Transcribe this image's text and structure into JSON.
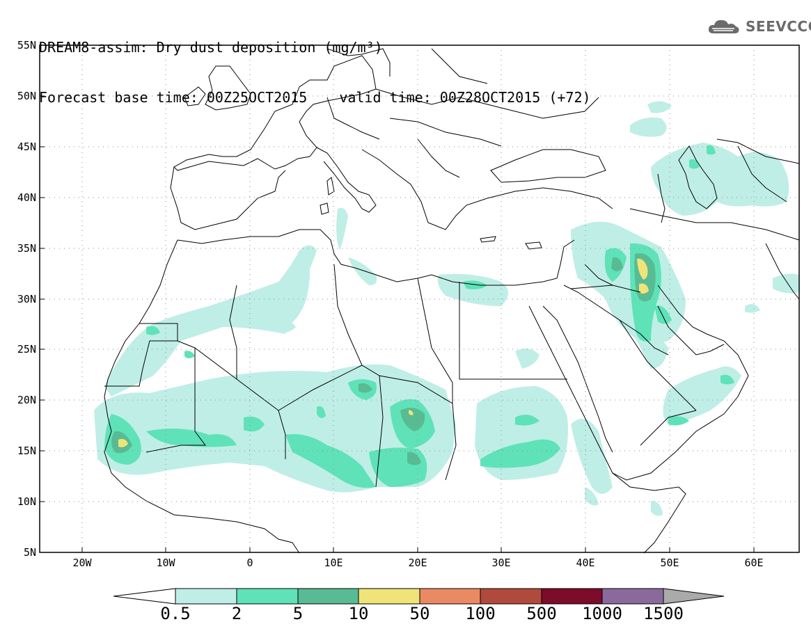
{
  "title": {
    "line1": "DREAM8-assim: Dry dust deposition (mg/m³)",
    "base_time": "Forecast base time: 00Z25OCT2015",
    "valid_time": "valid time: 00Z28OCT2015 (+72)"
  },
  "logo": {
    "icon": "cloud-icon",
    "text": "SEEVCCC"
  },
  "map": {
    "lon_range": [
      -25,
      65
    ],
    "lat_range": [
      5,
      55
    ],
    "lat_labels": [
      "55N",
      "50N",
      "45N",
      "40N",
      "35N",
      "30N",
      "25N",
      "20N",
      "15N",
      "10N",
      "5N"
    ],
    "lon_labels": [
      "20W",
      "10W",
      "0",
      "10E",
      "20E",
      "30E",
      "40E",
      "50E",
      "60E"
    ],
    "grid": "dotted"
  },
  "colorbar": {
    "levels": [
      "0.5",
      "2",
      "5",
      "10",
      "50",
      "100",
      "500",
      "1000",
      "1500"
    ],
    "colors": [
      "#ffffff",
      "#bfeee6",
      "#5fe2b8",
      "#58bb93",
      "#f0e478",
      "#e98a64",
      "#b04a3d",
      "#7d0b2a",
      "#8a6a9c",
      "#aaaaaa"
    ]
  }
}
